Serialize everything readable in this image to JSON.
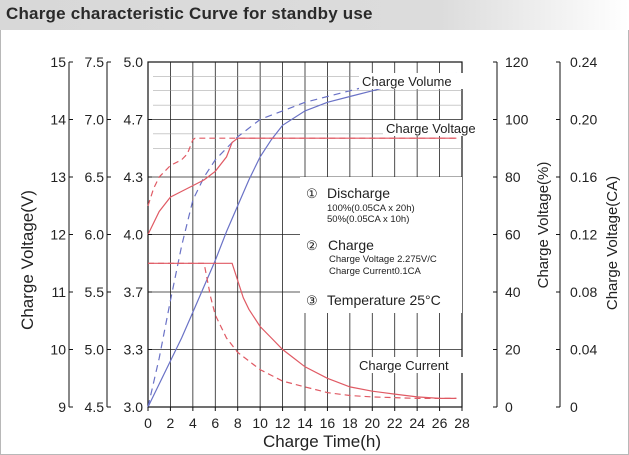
{
  "title": "Charge characteristic Curve for standby use",
  "chart_data": {
    "type": "line",
    "xlabel": "Charge Time(h)",
    "x_ticks": [
      "0",
      "2",
      "4",
      "6",
      "8",
      "10",
      "12",
      "14",
      "16",
      "18",
      "20",
      "22",
      "24",
      "26",
      "28"
    ],
    "xlim": [
      0,
      28
    ],
    "left_axes": [
      {
        "name": "charge_voltage_24v",
        "ticks": [
          "9",
          "10",
          "11",
          "12",
          "13",
          "14",
          "15"
        ]
      },
      {
        "name": "charge_voltage_12v",
        "ticks": [
          "4.5",
          "5.0",
          "5.5",
          "6.0",
          "6.5",
          "7.0",
          "7.5"
        ]
      },
      {
        "name": "charge_voltage_6v",
        "ticks": [
          "3.0",
          "3.3",
          "3.7",
          "4.0",
          "4.3",
          "4.7",
          "5.0"
        ]
      }
    ],
    "left_label": "Charge Voltage(V)",
    "right_axes": [
      {
        "name": "charge_volume_pct",
        "label": "Charge Voltage(%)",
        "ticks": [
          "0",
          "20",
          "40",
          "60",
          "80",
          "100",
          "120"
        ]
      },
      {
        "name": "charge_current_ca",
        "label": "Charge Voltage(CA)",
        "ticks": [
          "0",
          "0.04",
          "0.08",
          "0.12",
          "0.16",
          "0.20",
          "0.24"
        ]
      }
    ],
    "ylim": [
      0,
      120
    ],
    "series": [
      {
        "name": "Charge Volume",
        "role": "charge_volume",
        "discharge": "100%",
        "color": "#6a72c6",
        "dash": "none",
        "x": [
          0,
          1,
          2,
          3,
          4,
          5,
          6,
          7,
          8,
          9,
          10,
          11,
          12,
          14,
          16,
          18,
          20,
          22,
          24,
          26,
          27.5
        ],
        "y": [
          0,
          8,
          16,
          24,
          33,
          42,
          51,
          61,
          70,
          79,
          87,
          93,
          98,
          103,
          106,
          108,
          110,
          112,
          113,
          114,
          115
        ]
      },
      {
        "name": "Charge Volume",
        "role": "charge_volume",
        "discharge": "50%",
        "color": "#6a72c6",
        "dash": "7,5",
        "x": [
          0,
          1,
          2,
          3,
          4,
          5,
          6,
          7,
          8,
          10,
          12,
          14,
          16,
          18,
          20,
          22,
          24,
          26,
          27.5
        ],
        "y": [
          0,
          17,
          37,
          56,
          72,
          80,
          86,
          90,
          94,
          100,
          103,
          106,
          108,
          110,
          112,
          113,
          114,
          115,
          116
        ]
      },
      {
        "name": "Charge Voltage",
        "role": "charge_voltage",
        "discharge": "100%",
        "color": "#e05a64",
        "dash": "none",
        "x": [
          0,
          1,
          2,
          3,
          4,
          5,
          6,
          7,
          7.5,
          8,
          27.5
        ],
        "y": [
          60,
          68,
          73,
          75,
          77,
          79,
          82,
          87,
          92,
          93.5,
          93.5
        ]
      },
      {
        "name": "Charge Voltage",
        "role": "charge_voltage",
        "discharge": "50%",
        "color": "#e05a64",
        "dash": "6,4",
        "x": [
          0,
          0.5,
          1,
          2,
          3,
          3.5,
          4,
          4.2,
          27.5
        ],
        "y": [
          70,
          76,
          80,
          84,
          86,
          88,
          93,
          93.5,
          93.5
        ]
      },
      {
        "name": "Charge Current",
        "role": "charge_current",
        "discharge": "100%",
        "color": "#e05a64",
        "dash": "none",
        "x": [
          0,
          7.5,
          8,
          8.5,
          9,
          10,
          11,
          12,
          13,
          14,
          16,
          18,
          20,
          22,
          24,
          26,
          27.5
        ],
        "y": [
          50,
          50,
          44,
          38,
          34,
          28,
          24,
          20,
          17,
          14,
          10,
          7,
          5.5,
          4.5,
          3.5,
          3,
          3
        ]
      },
      {
        "name": "Charge Current",
        "role": "charge_current",
        "discharge": "50%",
        "color": "#e05a64",
        "dash": "6,4",
        "x": [
          0,
          5,
          5.3,
          5.6,
          6,
          7,
          8,
          10,
          12,
          14,
          16,
          18,
          20,
          24,
          27.5
        ],
        "y": [
          50,
          50,
          44,
          38,
          32,
          24,
          19,
          13,
          9,
          7,
          5,
          4,
          3.5,
          3,
          3
        ]
      }
    ],
    "annotations": {
      "charge_volume": "Charge Volume",
      "charge_voltage": "Charge Voltage",
      "charge_current": "Charge Current",
      "note1_title": "Discharge",
      "note1_line1": "100%(0.05CA x 20h)",
      "note1_line2": "50%(0.05CA x 10h)",
      "note2_title": "Charge",
      "note2_line1": "Charge Voltage 2.275V/C",
      "note2_line2": "Charge Current0.1CA",
      "note3_title": "Temperature 25°C",
      "num1": "①",
      "num2": "②",
      "num3": "③"
    },
    "grid": true
  }
}
